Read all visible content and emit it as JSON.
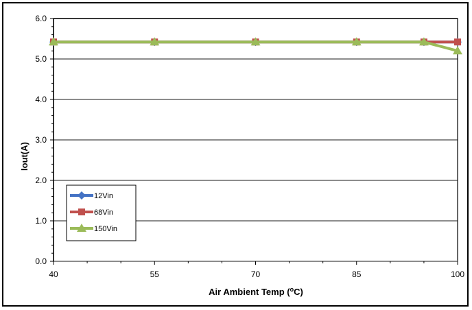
{
  "chart_data": {
    "type": "line",
    "title": "",
    "xlabel": "Air Ambient Temp (",
    "xlabel_sup": "o",
    "xlabel_suffix": "C)",
    "ylabel": "Iout(A)",
    "x": [
      40,
      55,
      70,
      85,
      95,
      100
    ],
    "xticks": [
      40,
      55,
      70,
      85,
      100
    ],
    "yticks": [
      "0.0",
      "1.0",
      "2.0",
      "3.0",
      "4.0",
      "5.0",
      "6.0"
    ],
    "xlim": [
      40,
      100
    ],
    "ylim": [
      0,
      6
    ],
    "grid": true,
    "legend_position": "lower-left",
    "series": [
      {
        "name": "12Vin",
        "color": "#4472C4",
        "marker": "diamond",
        "values": [
          5.42,
          5.42,
          5.42,
          5.42,
          5.42,
          5.42
        ]
      },
      {
        "name": "68Vin",
        "color": "#C0504D",
        "marker": "square",
        "values": [
          5.42,
          5.42,
          5.42,
          5.42,
          5.42,
          5.42
        ]
      },
      {
        "name": "150Vin",
        "color": "#9BBB59",
        "marker": "triangle",
        "values": [
          5.42,
          5.42,
          5.42,
          5.42,
          5.42,
          5.2
        ]
      }
    ]
  }
}
